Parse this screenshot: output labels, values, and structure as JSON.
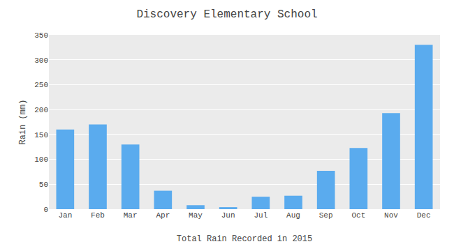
{
  "chart_data": {
    "type": "bar",
    "title": "Discovery Elementary School",
    "xlabel": "Total Rain Recorded in 2015",
    "ylabel": "Rain (mm)",
    "categories": [
      "Jan",
      "Feb",
      "Mar",
      "Apr",
      "May",
      "Jun",
      "Jul",
      "Aug",
      "Sep",
      "Oct",
      "Nov",
      "Dec"
    ],
    "values": [
      160,
      170,
      130,
      37,
      8,
      4,
      25,
      27,
      77,
      123,
      193,
      330
    ],
    "color": "#5aabee",
    "ylim": [
      0,
      350
    ],
    "yticks": [
      0,
      50,
      100,
      150,
      200,
      250,
      300,
      350
    ],
    "grid": true
  }
}
